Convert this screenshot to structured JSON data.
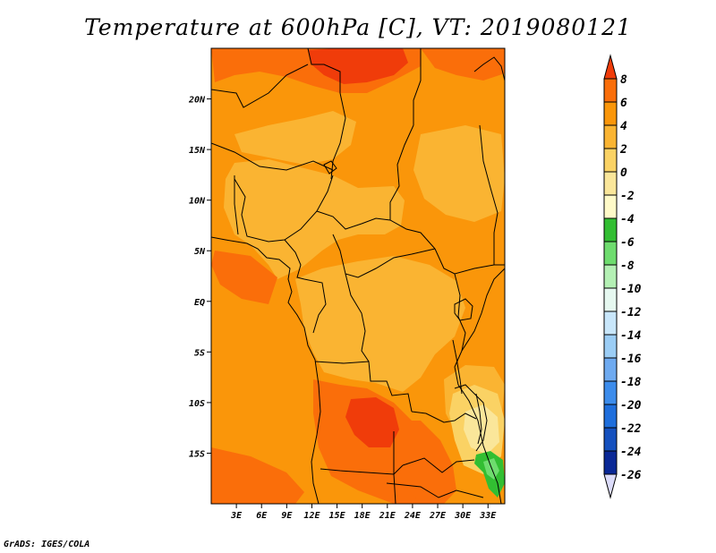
{
  "title": "Temperature at 600hPa [C], VT: 2019080121",
  "footer": "GrADS: IGES/COLA",
  "map": {
    "lon_range": [
      0,
      35
    ],
    "lat_range": [
      -20,
      25
    ],
    "lon_ticks": [
      "3E",
      "6E",
      "9E",
      "12E",
      "15E",
      "18E",
      "21E",
      "24E",
      "27E",
      "30E",
      "33E"
    ],
    "lat_ticks": [
      "20N",
      "15N",
      "10N",
      "5N",
      "EQ",
      "5S",
      "10S",
      "15S"
    ]
  },
  "colorbar": {
    "levels": [
      "8",
      "6",
      "4",
      "2",
      "0",
      "-2",
      "-4",
      "-6",
      "-8",
      "-10",
      "-12",
      "-14",
      "-16",
      "-18",
      "-20",
      "-22",
      "-24",
      "-26"
    ],
    "colors": [
      "#f03c0a",
      "#fa6e0a",
      "#fa960a",
      "#fab432",
      "#fad264",
      "#fae69a",
      "#fffac8",
      "#32be32",
      "#6edc6e",
      "#b4f0b4",
      "#e6f8f0",
      "#c8e6fa",
      "#9bcdf5",
      "#6eaaf0",
      "#3c8ceb",
      "#1e6edc",
      "#1450be",
      "#0a2896",
      "#0a0a64",
      "#dcdcfa"
    ]
  }
}
